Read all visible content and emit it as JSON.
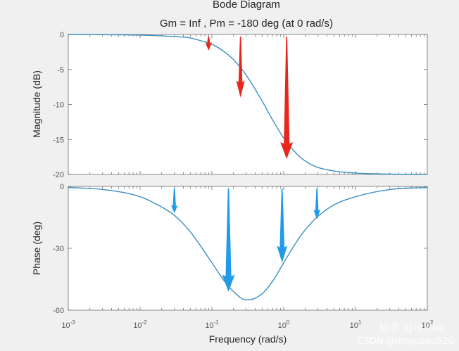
{
  "chart_data": {
    "type": "line",
    "title": "Bode Diagram",
    "subtitle": "Gm = Inf ,  Pm = -180 deg (at 0 rad/s)",
    "xlabel": "Frequency  (rad/s)",
    "xscale": "log",
    "xlim": [
      0.001,
      100
    ],
    "x_ticks": [
      {
        "base": "10",
        "exp": "-3"
      },
      {
        "base": "10",
        "exp": "-2"
      },
      {
        "base": "10",
        "exp": "-1"
      },
      {
        "base": "10",
        "exp": "0"
      },
      {
        "base": "10",
        "exp": "1"
      },
      {
        "base": "10",
        "exp": "2"
      }
    ],
    "line_color": "#3a8fc4",
    "grid": false,
    "magnitude": {
      "ylabel": "Magnitude (dB)",
      "ylim": [
        -20,
        0
      ],
      "y_ticks": [
        "0",
        "-5",
        "-10",
        "-15",
        "-20"
      ],
      "y_tick_values": [
        0,
        -5,
        -10,
        -15,
        -20
      ],
      "x": [
        0.001,
        0.003,
        0.01,
        0.03,
        0.05,
        0.07,
        0.1,
        0.15,
        0.2,
        0.3,
        0.5,
        0.7,
        1,
        1.5,
        2,
        3,
        5,
        10,
        30,
        100
      ],
      "y": [
        0,
        -0.03,
        -0.09,
        -0.3,
        -0.5,
        -0.9,
        -1.4,
        -2.5,
        -3.6,
        -5.8,
        -9.5,
        -12.2,
        -14.8,
        -17.0,
        -18.1,
        -19.0,
        -19.5,
        -19.8,
        -19.95,
        -20
      ]
    },
    "phase": {
      "ylabel": "Phase (deg)",
      "ylim": [
        -60,
        0
      ],
      "y_ticks": [
        "0",
        "-30",
        "-60"
      ],
      "y_tick_values": [
        0,
        -30,
        -60
      ],
      "x": [
        0.001,
        0.003,
        0.01,
        0.02,
        0.03,
        0.05,
        0.07,
        0.1,
        0.15,
        0.2,
        0.3,
        0.316,
        0.5,
        0.7,
        1,
        1.5,
        2,
        3,
        5,
        10,
        30,
        100
      ],
      "y": [
        -0.5,
        -1.5,
        -5,
        -10,
        -14,
        -22,
        -29,
        -37,
        -46,
        -51,
        -55,
        -55,
        -52,
        -46,
        -37,
        -27,
        -21,
        -14.5,
        -9,
        -5,
        -1.5,
        -0.5
      ]
    },
    "annotations": [
      {
        "panel": "magnitude",
        "x": 0.09,
        "tail": -0.3,
        "head": -2.3,
        "color": "#e8261c"
      },
      {
        "panel": "magnitude",
        "x": 0.25,
        "tail": -0.3,
        "head": -9.0,
        "color": "#e8261c"
      },
      {
        "panel": "magnitude",
        "x": 1.1,
        "tail": -0.3,
        "head": -17.8,
        "color": "#e8261c"
      },
      {
        "panel": "phase",
        "x": 0.03,
        "tail": -1,
        "head": -13,
        "color": "#1f9be8"
      },
      {
        "panel": "phase",
        "x": 0.17,
        "tail": -1,
        "head": -51,
        "color": "#1f9be8"
      },
      {
        "panel": "phase",
        "x": 0.95,
        "tail": -1,
        "head": -37,
        "color": "#1f9be8"
      },
      {
        "panel": "phase",
        "x": 2.9,
        "tail": -1,
        "head": -16,
        "color": "#1f9be8"
      }
    ],
    "watermark": "知乎 @leijieo\nCSDN @mogutou520"
  }
}
